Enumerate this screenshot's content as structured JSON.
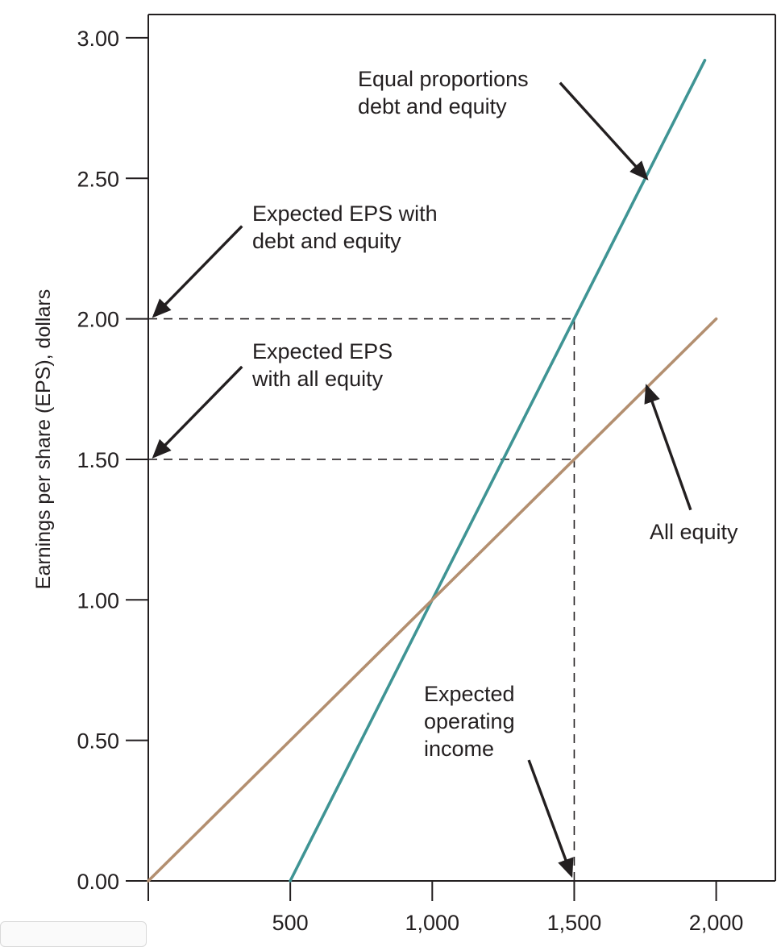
{
  "chart_data": {
    "type": "line",
    "title": "",
    "xlabel": "",
    "ylabel": "Earnings per share (EPS), dollars",
    "xlim": [
      0,
      2200
    ],
    "ylim": [
      0,
      3.0
    ],
    "x_ticks": [
      {
        "value": 500,
        "label": "500"
      },
      {
        "value": 1000,
        "label": "1,000"
      },
      {
        "value": 1500,
        "label": "1,500"
      },
      {
        "value": 2000,
        "label": "2,000"
      }
    ],
    "y_ticks": [
      {
        "value": 0,
        "label": "0.00"
      },
      {
        "value": 0.5,
        "label": "0.50"
      },
      {
        "value": 1.0,
        "label": "1.00"
      },
      {
        "value": 1.5,
        "label": "1.50"
      },
      {
        "value": 2.0,
        "label": "2.00"
      },
      {
        "value": 2.5,
        "label": "2.50"
      },
      {
        "value": 3.0,
        "label": "3.00"
      }
    ],
    "grid": false,
    "series": [
      {
        "name": "Equal proportions debt and equity",
        "color": "#3f9494",
        "points": [
          [
            500,
            0.0
          ],
          [
            1960,
            2.92
          ]
        ]
      },
      {
        "name": "All equity",
        "color": "#b38f70",
        "points": [
          [
            0,
            0.0
          ],
          [
            2000,
            2.0
          ]
        ]
      }
    ],
    "reference_lines": [
      {
        "points": [
          [
            0,
            2.0
          ],
          [
            1500,
            2.0
          ]
        ]
      },
      {
        "points": [
          [
            0,
            1.5
          ],
          [
            1500,
            1.5
          ]
        ]
      },
      {
        "points": [
          [
            1500,
            0.0
          ],
          [
            1500,
            2.0
          ]
        ]
      }
    ],
    "annotations": [
      {
        "lines": [
          "Equal proportions",
          "debt and equity"
        ],
        "arrow_from": [
          1450,
          2.84
        ],
        "arrow_to": [
          1755,
          2.5
        ]
      },
      {
        "lines": [
          "Expected EPS with",
          "debt and equity"
        ],
        "arrow_from": [
          330,
          2.33
        ],
        "arrow_to": [
          20,
          2.01
        ]
      },
      {
        "lines": [
          "Expected EPS",
          "with all equity"
        ],
        "arrow_from": [
          330,
          1.83
        ],
        "arrow_to": [
          20,
          1.51
        ]
      },
      {
        "lines": [
          "All equity"
        ],
        "arrow_from": [
          1910,
          1.32
        ],
        "arrow_to": [
          1755,
          1.76
        ]
      },
      {
        "lines": [
          "Expected",
          "operating",
          "income"
        ],
        "arrow_from": [
          1340,
          0.43
        ],
        "arrow_to": [
          1490,
          0.02
        ]
      }
    ]
  }
}
